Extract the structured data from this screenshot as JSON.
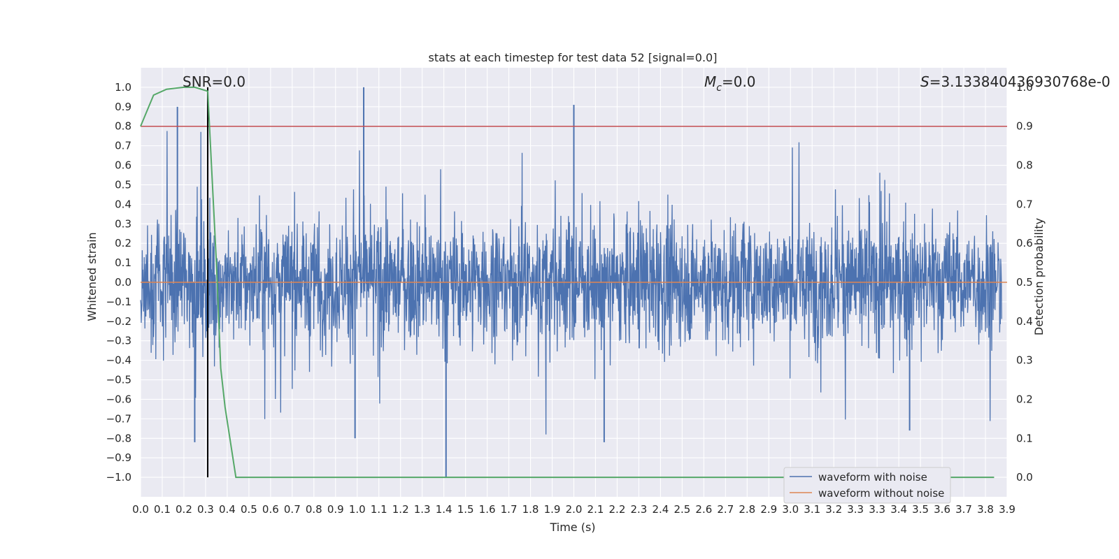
{
  "chart_data": {
    "type": "line",
    "title": "stats at each timestep for test data 52 [signal=0.0]",
    "xlabel": "Time (s)",
    "ylabel": "Whitened strain",
    "y2label": "Detection probability",
    "xlim": [
      0.0,
      4.0
    ],
    "ylim": [
      -1.1,
      1.1
    ],
    "y2lim": [
      -0.05,
      1.05
    ],
    "xticks": [
      "0.0",
      "0.1",
      "0.2",
      "0.3",
      "0.4",
      "0.5",
      "0.6",
      "0.7",
      "0.8",
      "0.9",
      "1.0",
      "1.1",
      "1.2",
      "1.3",
      "1.4",
      "1.5",
      "1.6",
      "1.7",
      "1.8",
      "1.9",
      "2.0",
      "2.1",
      "2.2",
      "2.3",
      "2.4",
      "2.5",
      "2.6",
      "2.7",
      "2.8",
      "2.9",
      "3.0",
      "3.1",
      "3.2",
      "3.3",
      "3.3",
      "3.4",
      "3.5",
      "3.6",
      "3.7",
      "3.8",
      "3.9"
    ],
    "yticks": [
      "1.0",
      "0.9",
      "0.8",
      "0.7",
      "0.6",
      "0.5",
      "0.4",
      "0.3",
      "0.2",
      "0.1",
      "0.0",
      "−0.1",
      "−0.2",
      "−0.3",
      "−0.4",
      "−0.5",
      "−0.6",
      "−0.7",
      "−0.8",
      "−0.9",
      "−1.0"
    ],
    "y2ticks": [
      "1.0",
      "0.9",
      "0.8",
      "0.7",
      "0.6",
      "0.5",
      "0.4",
      "0.3",
      "0.2",
      "0.1",
      "0.0"
    ],
    "grid": true,
    "legend_placement": "lower-right",
    "annotations": {
      "snr": "SNR=0.0",
      "mc_symbol": "M",
      "mc_sub": "c",
      "mc_value": "=0.0",
      "s_symbol": "S",
      "s_value": "=3.13384043693076​8e-0"
    },
    "series": [
      {
        "name": "waveform with noise",
        "color": "#4c72b0",
        "kind": "noise",
        "amplitude_range": [
          -1.0,
          1.0
        ],
        "notable_peaks": [
          {
            "x": 0.17,
            "y": 0.9
          },
          {
            "x": 1.03,
            "y": 1.0
          },
          {
            "x": 2.0,
            "y": 0.91
          },
          {
            "x": 1.41,
            "y": -1.0
          },
          {
            "x": 2.14,
            "y": -0.82
          },
          {
            "x": 0.25,
            "y": -0.82
          },
          {
            "x": 0.99,
            "y": -0.8
          },
          {
            "x": 3.55,
            "y": -0.76
          }
        ]
      },
      {
        "name": "waveform without noise",
        "color": "#dd8452",
        "kind": "constant",
        "y": 0.0
      },
      {
        "name": "",
        "color": "#55a868",
        "axis": "right",
        "x": [
          0.0,
          0.06,
          0.12,
          0.2,
          0.25,
          0.31,
          0.35,
          0.37,
          0.39,
          0.44,
          3.94
        ],
        "y": [
          0.9,
          0.98,
          0.995,
          1.0,
          1.0,
          0.99,
          0.55,
          0.28,
          0.18,
          0.0,
          0.0
        ]
      }
    ],
    "reference_lines": [
      {
        "orientation": "horizontal",
        "axis": "right",
        "y": 0.9,
        "color": "#c44e52"
      },
      {
        "orientation": "vertical",
        "x": 0.31,
        "y_range": [
          -1.0,
          1.0
        ],
        "color": "#000000"
      }
    ]
  }
}
